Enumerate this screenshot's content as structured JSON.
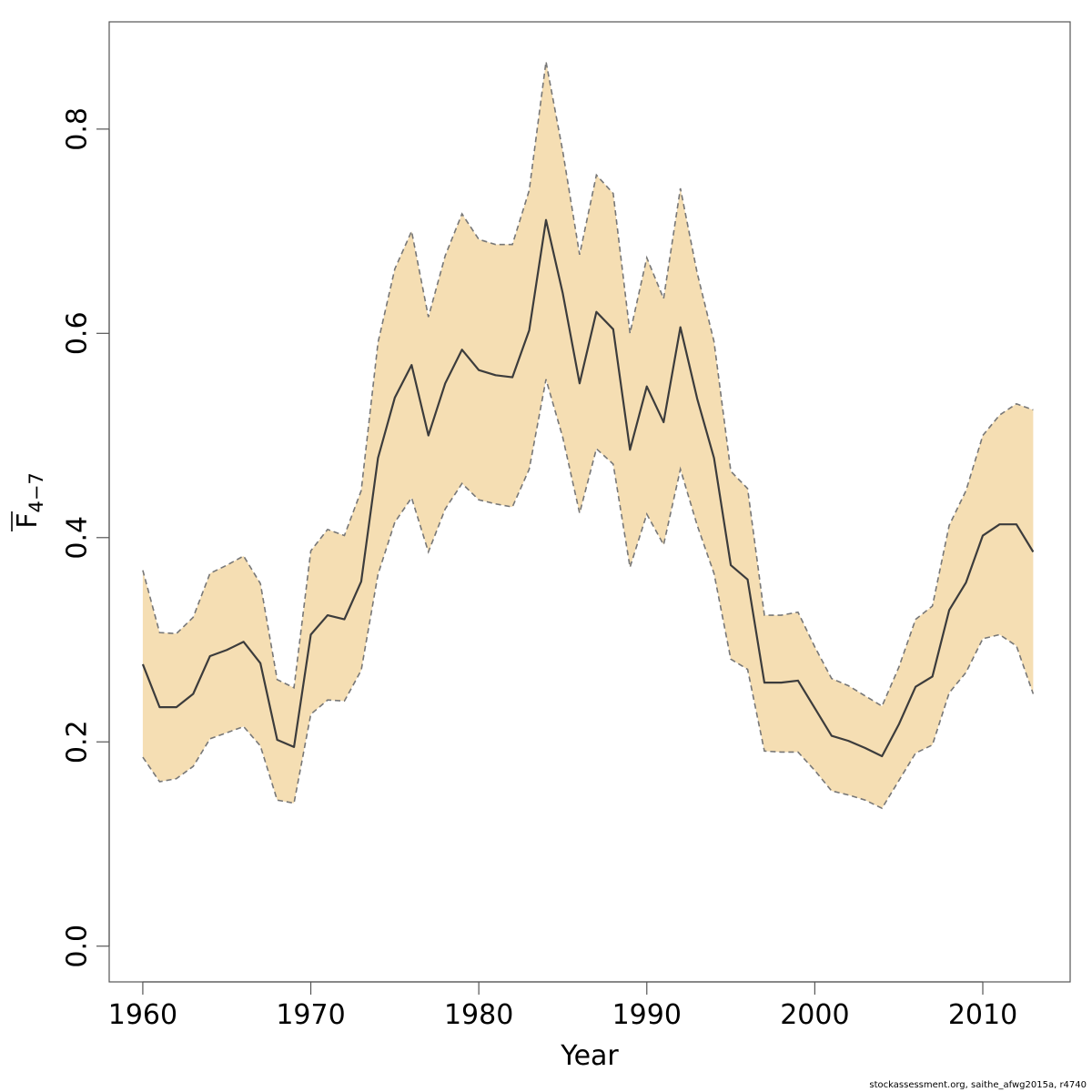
{
  "chart_data": {
    "type": "area",
    "title": "",
    "xlabel": "Year",
    "ylabel": {
      "main": "F",
      "sub": "4−7"
    },
    "xlim": [
      1958,
      2015.2
    ],
    "ylim": [
      -0.035,
      0.905
    ],
    "x_ticks": [
      1960,
      1970,
      1980,
      1990,
      2000,
      2010
    ],
    "y_ticks": [
      0.0,
      0.2,
      0.4,
      0.6,
      0.8
    ],
    "x_tick_labels": [
      "1960",
      "1970",
      "1980",
      "1990",
      "2000",
      "2010"
    ],
    "y_tick_labels": [
      "0.0",
      "0.2",
      "0.4",
      "0.6",
      "0.8"
    ],
    "grid": false,
    "colors": {
      "band": "#f5deb3",
      "band_edge": "#777777",
      "line": "#3c3c3c"
    },
    "x": [
      1960,
      1961,
      1962,
      1963,
      1964,
      1965,
      1966,
      1967,
      1968,
      1969,
      1970,
      1971,
      1972,
      1973,
      1974,
      1975,
      1976,
      1977,
      1978,
      1979,
      1980,
      1981,
      1982,
      1983,
      1984,
      1985,
      1986,
      1987,
      1988,
      1989,
      1990,
      1991,
      1992,
      1993,
      1994,
      1995,
      1996,
      1997,
      1998,
      1999,
      2000,
      2001,
      2002,
      2003,
      2004,
      2005,
      2006,
      2007,
      2008,
      2009,
      2010,
      2011,
      2012,
      2013
    ],
    "series": [
      {
        "role": "estimate",
        "values": [
          0.276,
          0.234,
          0.234,
          0.247,
          0.284,
          0.29,
          0.298,
          0.277,
          0.202,
          0.195,
          0.305,
          0.324,
          0.32,
          0.357,
          0.478,
          0.537,
          0.569,
          0.5,
          0.551,
          0.584,
          0.564,
          0.559,
          0.557,
          0.603,
          0.711,
          0.639,
          0.551,
          0.621,
          0.604,
          0.486,
          0.548,
          0.513,
          0.606,
          0.536,
          0.478,
          0.373,
          0.359,
          0.258,
          0.258,
          0.26,
          0.233,
          0.206,
          0.201,
          0.194,
          0.186,
          0.217,
          0.254,
          0.264,
          0.329,
          0.356,
          0.402,
          0.413,
          0.413,
          0.386
        ]
      },
      {
        "role": "upper",
        "values": [
          0.368,
          0.307,
          0.306,
          0.322,
          0.365,
          0.373,
          0.382,
          0.355,
          0.261,
          0.253,
          0.387,
          0.408,
          0.402,
          0.446,
          0.591,
          0.663,
          0.7,
          0.616,
          0.676,
          0.717,
          0.692,
          0.687,
          0.687,
          0.74,
          0.866,
          0.778,
          0.677,
          0.755,
          0.737,
          0.6,
          0.674,
          0.634,
          0.742,
          0.659,
          0.592,
          0.465,
          0.448,
          0.324,
          0.324,
          0.327,
          0.293,
          0.262,
          0.255,
          0.245,
          0.235,
          0.273,
          0.32,
          0.333,
          0.412,
          0.446,
          0.5,
          0.52,
          0.531,
          0.525
        ]
      },
      {
        "role": "lower",
        "values": [
          0.185,
          0.161,
          0.164,
          0.176,
          0.203,
          0.209,
          0.215,
          0.196,
          0.143,
          0.14,
          0.227,
          0.241,
          0.24,
          0.27,
          0.364,
          0.415,
          0.439,
          0.386,
          0.428,
          0.453,
          0.437,
          0.433,
          0.43,
          0.467,
          0.555,
          0.498,
          0.424,
          0.487,
          0.472,
          0.371,
          0.423,
          0.393,
          0.467,
          0.412,
          0.365,
          0.281,
          0.271,
          0.191,
          0.19,
          0.19,
          0.172,
          0.152,
          0.148,
          0.143,
          0.135,
          0.162,
          0.189,
          0.197,
          0.248,
          0.268,
          0.301,
          0.305,
          0.294,
          0.247
        ]
      }
    ]
  },
  "footer_text": "stockassessment.org, saithe_afwg2015a, r4740"
}
